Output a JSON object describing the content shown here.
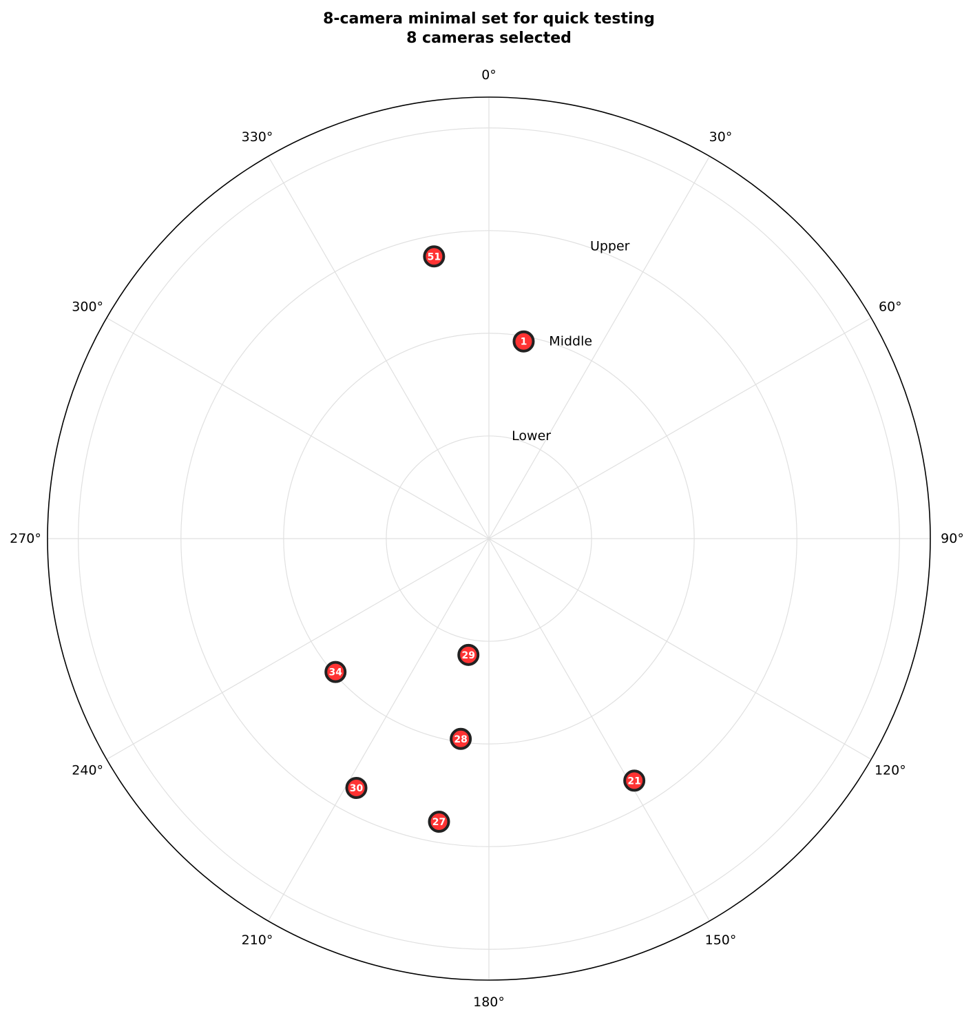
{
  "chart_data": {
    "type": "scatter",
    "projection": "polar",
    "title": "8-camera minimal set for quick testing",
    "subtitle": "8 cameras selected",
    "theta_direction": "clockwise",
    "theta_zero": "top",
    "angle_ticks": [
      "0°",
      "30°",
      "60°",
      "90°",
      "120°",
      "150°",
      "180°",
      "210°",
      "240°",
      "270°",
      "300°",
      "330°"
    ],
    "rings": [
      {
        "label": "Lower",
        "radius": 1
      },
      {
        "label": "Middle",
        "radius": 2
      },
      {
        "label": "Upper",
        "radius": 3
      }
    ],
    "rlim": [
      0,
      4.3
    ],
    "grid": true,
    "marker_color": "#ff3333",
    "marker_edge_color": "#222222",
    "points": [
      {
        "id": "1",
        "angle": 10,
        "radius": 1.95
      },
      {
        "id": "51",
        "angle": 349,
        "radius": 2.8
      },
      {
        "id": "29",
        "angle": 190,
        "radius": 1.15
      },
      {
        "id": "28",
        "angle": 188,
        "radius": 1.97
      },
      {
        "id": "27",
        "angle": 190,
        "radius": 2.8
      },
      {
        "id": "30",
        "angle": 208,
        "radius": 2.75
      },
      {
        "id": "34",
        "angle": 229,
        "radius": 1.98
      },
      {
        "id": "21",
        "angle": 149,
        "radius": 2.75
      }
    ]
  }
}
